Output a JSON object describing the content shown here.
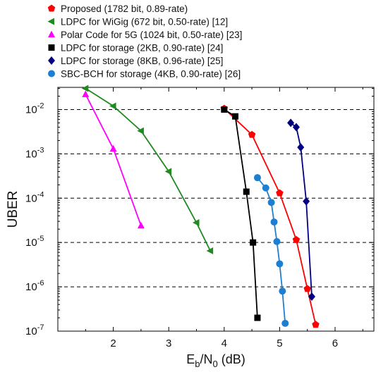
{
  "chart_data": {
    "type": "line",
    "title": "",
    "xlabel": {
      "main": "E",
      "sub1": "b",
      "mid": "/N",
      "sub2": "0",
      "tail": " (dB)"
    },
    "ylabel": "UBER",
    "xlim": [
      1,
      6.7
    ],
    "ylim_log10": [
      -7,
      -1.5
    ],
    "x_ticks": [
      2,
      3,
      4,
      5,
      6
    ],
    "y_ticks": [
      {
        "exp": -2,
        "base": "10",
        "sup": "-2"
      },
      {
        "exp": -3,
        "base": "10",
        "sup": "-3"
      },
      {
        "exp": -4,
        "base": "10",
        "sup": "-4"
      },
      {
        "exp": -5,
        "base": "10",
        "sup": "-5"
      },
      {
        "exp": -6,
        "base": "10",
        "sup": "-6"
      },
      {
        "exp": -7,
        "base": "10",
        "sup": "-7"
      }
    ],
    "grid": "horizontal dashed at decades",
    "legend_position": "top-left, outside plot",
    "series": [
      {
        "name": "Proposed (1782 bit, 0.89-rate)",
        "color": "#ff0000",
        "marker": "pentagon",
        "points": [
          [
            4.0,
            0.0105
          ],
          [
            4.5,
            0.0027
          ],
          [
            5.0,
            0.00013
          ],
          [
            5.3,
            1.15e-05
          ],
          [
            5.5,
            9e-07
          ],
          [
            5.65,
            1.4e-07
          ]
        ]
      },
      {
        "name": "LDPC for WiGig (672 bit, 0.50-rate) [12]",
        "color": "#1f8a1f",
        "marker": "triangle-left",
        "points": [
          [
            1.5,
            0.03
          ],
          [
            2.0,
            0.012
          ],
          [
            2.5,
            0.0033
          ],
          [
            3.0,
            0.0004
          ],
          [
            3.5,
            2.8e-05
          ],
          [
            3.75,
            6.5e-06
          ]
        ]
      },
      {
        "name": "Polar Code for 5G (1024 bit, 0.50-rate) [23]",
        "color": "#ff00ff",
        "marker": "triangle-up",
        "points": [
          [
            1.5,
            0.022
          ],
          [
            2.0,
            0.0013
          ],
          [
            2.5,
            2.4e-05
          ]
        ]
      },
      {
        "name": "LDPC for storage (2KB, 0.90-rate) [24]",
        "color": "#000000",
        "marker": "square",
        "points": [
          [
            4.0,
            0.01
          ],
          [
            4.2,
            0.007
          ],
          [
            4.4,
            0.00014
          ],
          [
            4.52,
            1e-05
          ],
          [
            4.6,
            2e-07
          ]
        ]
      },
      {
        "name": "LDPC for storage (8KB, 0.96-rate) [25]",
        "color": "#000080",
        "marker": "diamond",
        "points": [
          [
            5.2,
            0.005
          ],
          [
            5.3,
            0.004
          ],
          [
            5.38,
            0.0014
          ],
          [
            5.48,
            8.5e-05
          ],
          [
            5.58,
            6e-07
          ]
        ]
      },
      {
        "name": "SBC-BCH for storage (4KB, 0.90-rate) [26]",
        "color": "#1e7fd1",
        "marker": "circle",
        "points": [
          [
            4.6,
            0.00029
          ],
          [
            4.75,
            0.00017
          ],
          [
            4.85,
            8e-05
          ],
          [
            4.9,
            2.9e-05
          ],
          [
            4.95,
            1.05e-05
          ],
          [
            5.0,
            3.3e-06
          ],
          [
            5.05,
            8e-07
          ],
          [
            5.1,
            1.5e-07
          ]
        ]
      }
    ]
  }
}
